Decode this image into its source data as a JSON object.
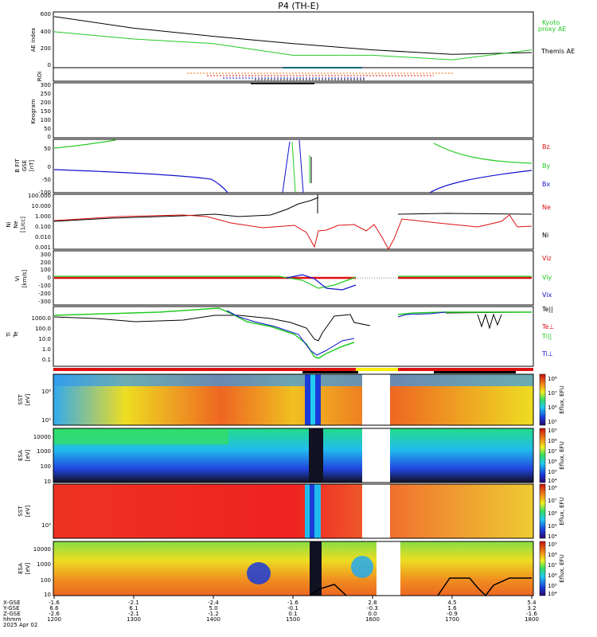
{
  "title": "P4 (TH-E)",
  "colors": {
    "black": "#000000",
    "green": "#22cc22",
    "red": "#dd1111",
    "blue": "#1111cc",
    "cyan": "#22ccee",
    "orange": "#ee7711",
    "yellow": "#ffee00"
  },
  "panels": {
    "ae": {
      "ylabel": "AE index",
      "legend": [
        "Kyoto",
        "proxy AE",
        "Themis AE"
      ],
      "yticks": [
        "600",
        "400",
        "200",
        "0"
      ]
    },
    "roi": {
      "ylabel": "ROI"
    },
    "keogram": {
      "ylabel": "Keogram",
      "yticks": [
        "300",
        "250",
        "200",
        "150",
        "100",
        "50",
        "0"
      ]
    },
    "bfield": {
      "ylabel": [
        "B FIT",
        "GSE",
        "[nT]"
      ],
      "yticks": [
        "50",
        "0",
        "-50",
        "-100"
      ],
      "legend": [
        "Bz",
        "By",
        "Bx"
      ]
    },
    "density": {
      "ylabel": [
        "Ni",
        "Ne",
        "[1/cc]"
      ],
      "yticks": [
        "100.000",
        "10.000",
        "1.000",
        "0.100",
        "0.010",
        "0.001"
      ],
      "legend": [
        "Ne",
        "Ni"
      ]
    },
    "velocity": {
      "ylabel": [
        "Vi",
        "[km/s]"
      ],
      "yticks": [
        "300",
        "200",
        "100",
        "0",
        "-100",
        "-200",
        "-300"
      ],
      "legend": [
        "Viz",
        "Viy",
        "Vix"
      ]
    },
    "temperature": {
      "ylabel": [
        "Ti",
        "Te",
        "[eV]"
      ],
      "yticks": [
        "1000.0",
        "100.0",
        "10.0",
        "1.0",
        "0.1"
      ],
      "legend": [
        "Te||",
        "Te⊥",
        "Ti||",
        "Ti⊥"
      ]
    },
    "spec1": {
      "ylabel": [
        "SST",
        "[eV]"
      ],
      "yticks": [
        "10⁶",
        "10⁵"
      ]
    },
    "spec2": {
      "ylabel": [
        "ESA",
        "[eV]"
      ],
      "yticks": [
        "10000",
        "1000",
        "100",
        "10"
      ]
    },
    "spec3": {
      "ylabel": [
        "SST",
        "[eV]"
      ],
      "yticks": [
        "10⁵"
      ]
    },
    "spec4": {
      "ylabel": [
        "ESA",
        "[eV]"
      ],
      "yticks": [
        "10000",
        "1000",
        "100",
        "10"
      ]
    }
  },
  "colorbar": {
    "label": "Eflux, EFU",
    "scales": [
      [
        "10⁸",
        "10⁷",
        "10⁶",
        "10⁵"
      ],
      [
        "10⁹",
        "10⁸",
        "10⁷",
        "10⁶",
        "10⁵",
        "10⁴"
      ],
      [
        "10⁸",
        "10⁷",
        "10⁶",
        "10⁵",
        "10⁴"
      ],
      [
        "10⁹",
        "10⁸",
        "10⁷",
        "10⁶",
        "10⁵",
        "10⁴"
      ]
    ]
  },
  "axis_footer": {
    "row_labels": [
      "X-GSE",
      "Y-GSE",
      "Z-GSE",
      "hhmm",
      "2025 Apr 02"
    ],
    "columns": [
      [
        "-1.6",
        "6.6",
        "-2.6",
        "1200"
      ],
      [
        "-2.1",
        "6.1",
        "-2.1",
        "1300"
      ],
      [
        "-2.4",
        "5.0",
        "-1.2",
        "1400"
      ],
      [
        "-1.6",
        "-0.1",
        "0.1",
        "1500"
      ],
      [
        "2.8",
        "-0.3",
        "0.0",
        "1600"
      ],
      [
        "4.5",
        "1.6",
        "-0.9",
        "1700"
      ],
      [
        "5.4",
        "3.2",
        "-1.6",
        "1800"
      ]
    ]
  },
  "chart_data": {
    "type": "line",
    "x": [
      "1200",
      "1300",
      "1400",
      "1500",
      "1600",
      "1700",
      "1800"
    ],
    "series": [
      {
        "name": "Themis AE",
        "values": [
          550,
          420,
          330,
          250,
          180,
          130,
          150
        ]
      },
      {
        "name": "Kyoto proxy AE",
        "values": [
          380,
          300,
          250,
          120,
          120,
          70,
          180
        ]
      }
    ]
  }
}
